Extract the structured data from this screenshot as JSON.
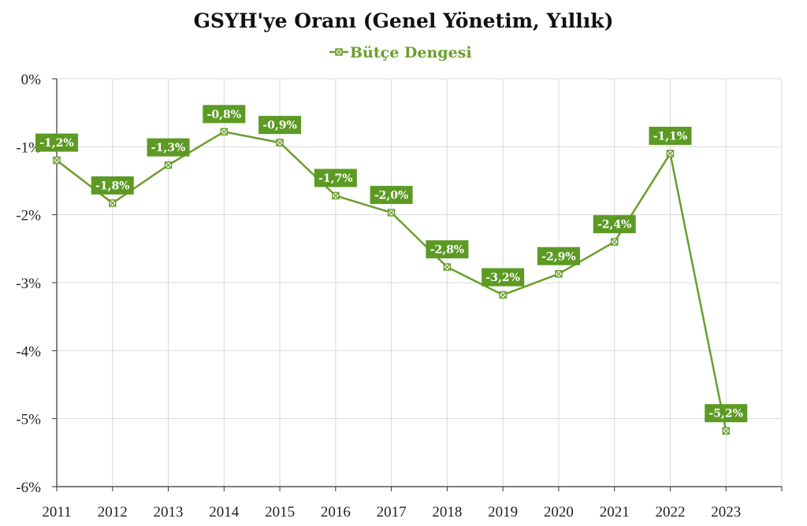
{
  "chart_data": {
    "type": "line",
    "title": "GSYH'ye Oranı (Genel Yönetim, Yıllık)",
    "xlabel": "",
    "ylabel": "",
    "categories": [
      "2011",
      "2012",
      "2013",
      "2014",
      "2015",
      "2016",
      "2017",
      "2018",
      "2019",
      "2020",
      "2021",
      "2022",
      "2023"
    ],
    "series": [
      {
        "name": "Bütçe Dengesi",
        "values": [
          -1.2,
          -1.83,
          -1.27,
          -0.78,
          -0.94,
          -1.72,
          -1.97,
          -2.77,
          -3.18,
          -2.87,
          -2.4,
          -1.1,
          -5.18
        ],
        "labels": [
          "-1,2%",
          "-1,8%",
          "-1,3%",
          "-0,8%",
          "-0,9%",
          "-1,7%",
          "-2,0%",
          "-2,8%",
          "-3,2%",
          "-2,9%",
          "-2,4%",
          "-1,1%",
          "-5,2%"
        ]
      }
    ],
    "ylim": [
      -6,
      0
    ],
    "yticks": [
      0,
      -1,
      -2,
      -3,
      -4,
      -5,
      -6
    ],
    "ytick_labels": [
      "0%",
      "-1%",
      "-2%",
      "-3%",
      "-4%",
      "-5%",
      "-6%"
    ],
    "grid": true,
    "legend_position": "top-center",
    "colors": {
      "series": "#6a9e2d",
      "label_bg": "#5c9a24",
      "grid": "#d9d9d9",
      "axis": "#333333"
    }
  }
}
